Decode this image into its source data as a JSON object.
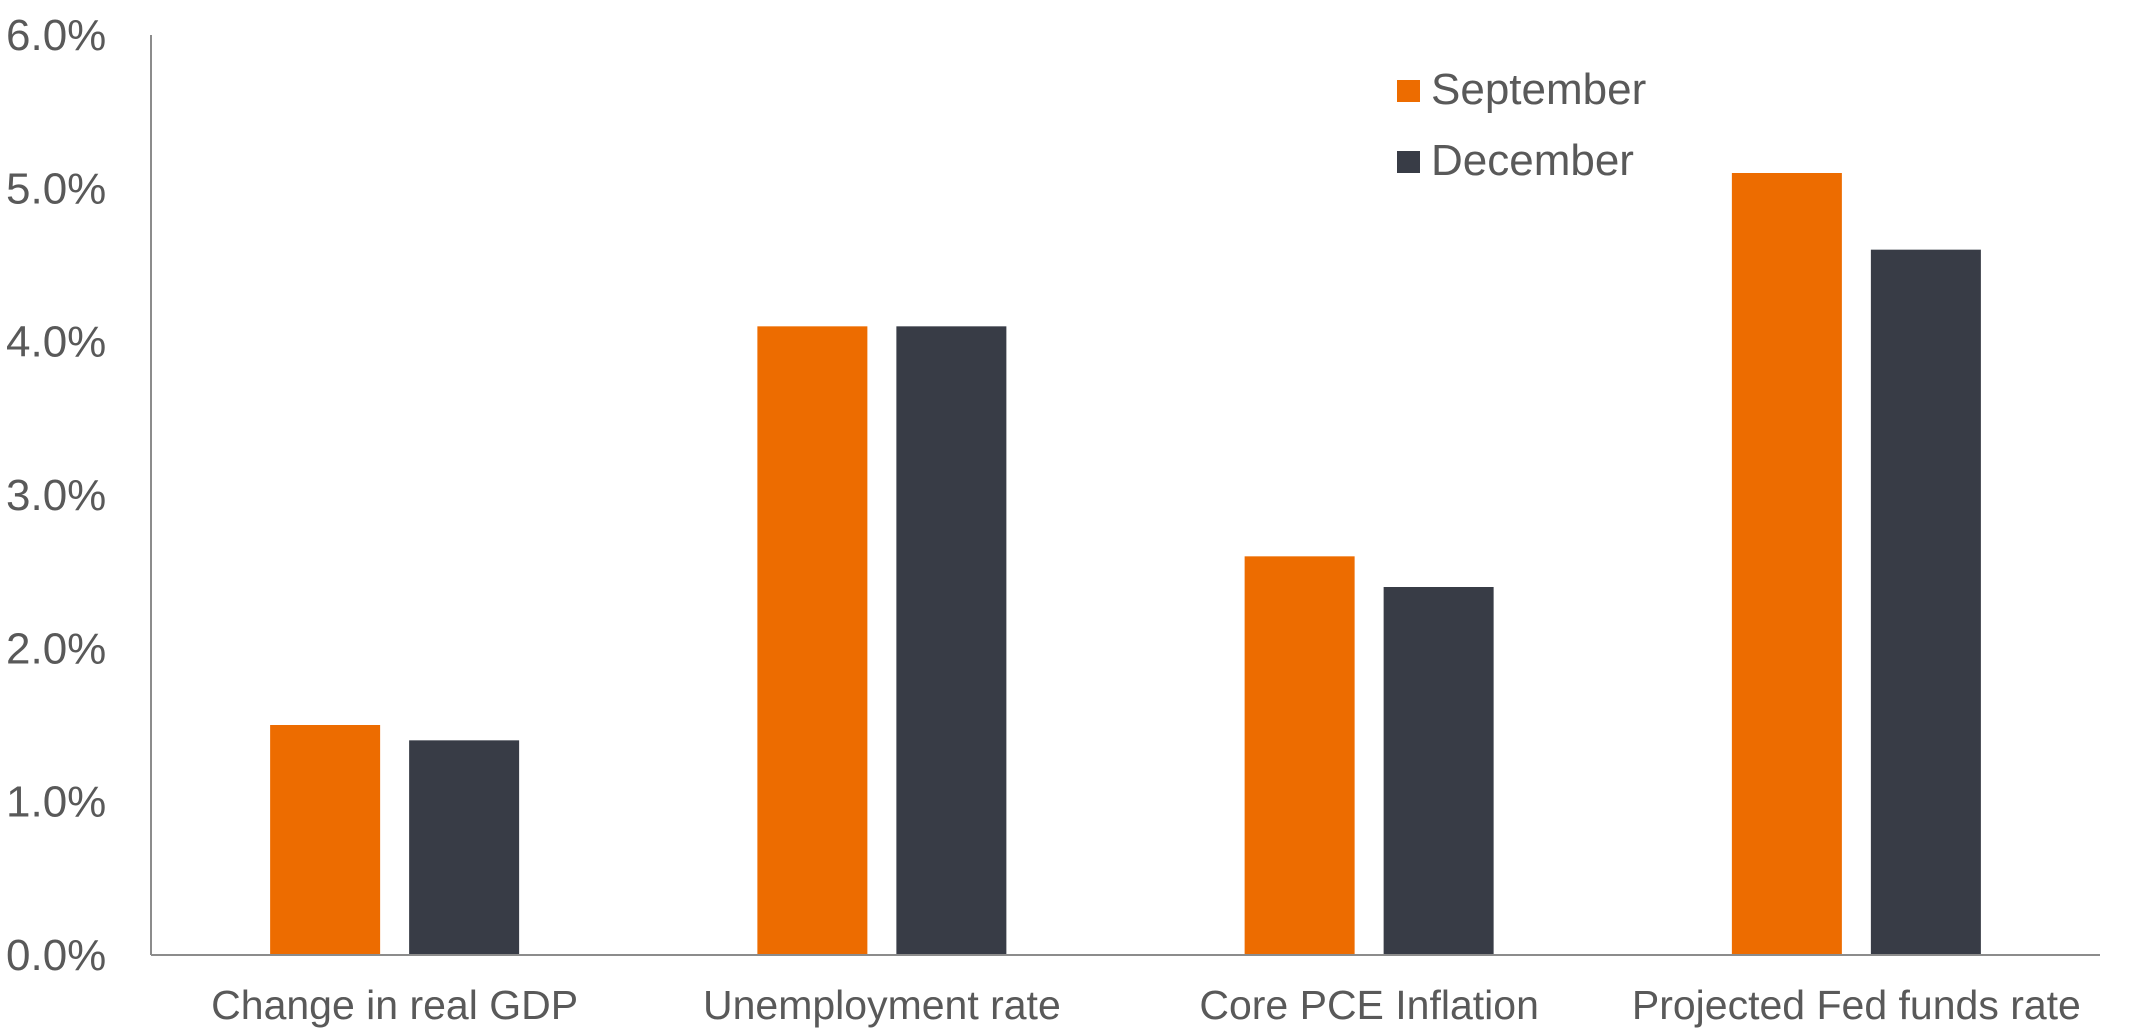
{
  "chart_data": {
    "type": "bar",
    "title": "",
    "xlabel": "",
    "ylabel": "",
    "categories": [
      "Change in real GDP",
      "Unemployment rate",
      "Core PCE Inflation",
      "Projected Fed funds rate"
    ],
    "series": [
      {
        "name": "September",
        "color": "#ED6C00",
        "values": [
          1.5,
          4.1,
          2.6,
          5.1
        ]
      },
      {
        "name": "December",
        "color": "#383C46",
        "values": [
          1.4,
          4.1,
          2.4,
          4.6
        ]
      }
    ],
    "ylim": [
      0,
      6
    ],
    "yticks": [
      0,
      1,
      2,
      3,
      4,
      5,
      6
    ],
    "ytick_labels": [
      "0.0%",
      "1.0%",
      "2.0%",
      "3.0%",
      "4.0%",
      "5.0%",
      "6.0%"
    ],
    "grid": false,
    "legend": {
      "placement": "top-right",
      "entries": [
        "September",
        "December"
      ]
    }
  }
}
